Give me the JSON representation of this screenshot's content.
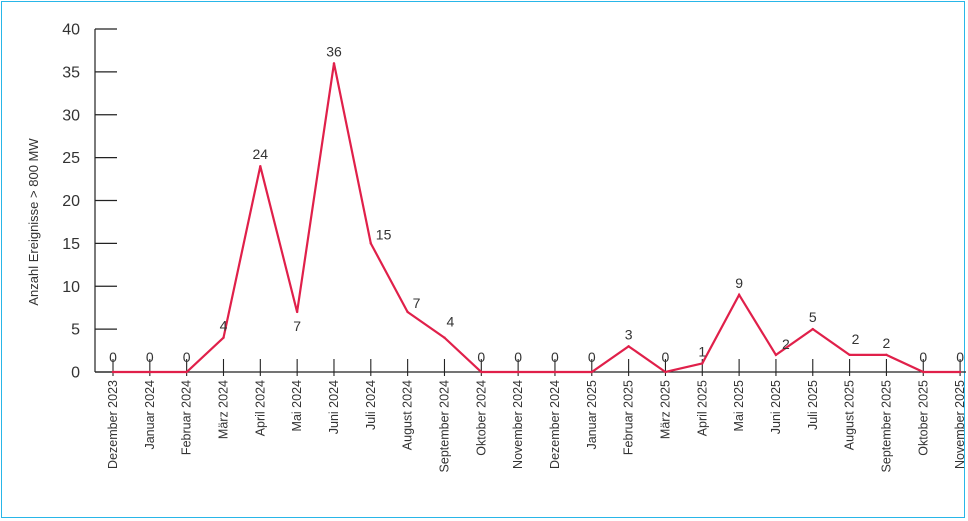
{
  "chart_data": {
    "type": "line",
    "title": "",
    "xlabel": "",
    "ylabel": "Anzahl Ereignisse > 800 MW",
    "ylim": [
      0,
      40
    ],
    "yticks": [
      0,
      5,
      10,
      15,
      20,
      25,
      30,
      35,
      40
    ],
    "grid": false,
    "legend": "none",
    "line_color": "#e0204a",
    "categories": [
      "Dezember 2023",
      "Januar 2024",
      "Februar 2024",
      "März 2024",
      "April 2024",
      "Mai 2024",
      "Juni 2024",
      "Juli 2024",
      "August 2024",
      "September 2024",
      "Oktober 2024",
      "November 2024",
      "Dezember 2024",
      "Januar 2025",
      "Februar 2025",
      "März 2025",
      "April 2025",
      "Mai 2025",
      "Juni 2025",
      "Juli 2025",
      "August 2025",
      "September 2025",
      "Oktober 2025",
      "November 2025"
    ],
    "series": [
      {
        "values": [
          0,
          0,
          0,
          4,
          24,
          7,
          36,
          15,
          7,
          4,
          0,
          0,
          0,
          0,
          3,
          0,
          1,
          9,
          2,
          5,
          2,
          2,
          0,
          0
        ]
      }
    ]
  }
}
